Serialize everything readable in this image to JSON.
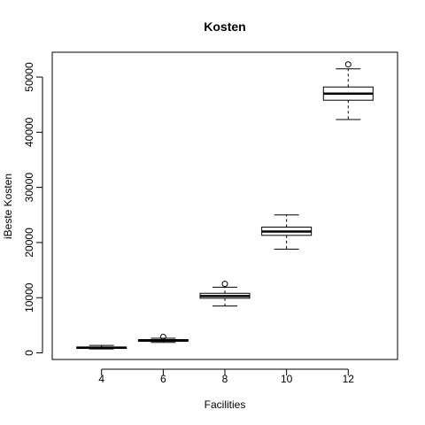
{
  "chart_data": {
    "type": "boxplot",
    "title": "Kosten",
    "xlabel": "Facilities",
    "ylabel": "iBeste Kosten",
    "categories": [
      "4",
      "6",
      "8",
      "10",
      "12"
    ],
    "yticks": [
      0,
      10000,
      20000,
      30000,
      40000,
      50000
    ],
    "ylim": [
      -1200,
      54500
    ],
    "grid": false,
    "boxes": [
      {
        "category": "4",
        "whisker_low": 700,
        "q1": 800,
        "median": 950,
        "q3": 1050,
        "whisker_high": 1350,
        "outliers": []
      },
      {
        "category": "6",
        "whisker_low": 1900,
        "q1": 2100,
        "median": 2250,
        "q3": 2400,
        "whisker_high": 2650,
        "outliers": [
          2900
        ]
      },
      {
        "category": "8",
        "whisker_low": 8500,
        "q1": 9900,
        "median": 10300,
        "q3": 10800,
        "whisker_high": 11900,
        "outliers": [
          12500
        ]
      },
      {
        "category": "10",
        "whisker_low": 18800,
        "q1": 21300,
        "median": 22000,
        "q3": 22800,
        "whisker_high": 25000,
        "outliers": []
      },
      {
        "category": "12",
        "whisker_low": 42300,
        "q1": 45800,
        "median": 47000,
        "q3": 48200,
        "whisker_high": 51500,
        "outliers": [
          52300
        ]
      }
    ]
  }
}
